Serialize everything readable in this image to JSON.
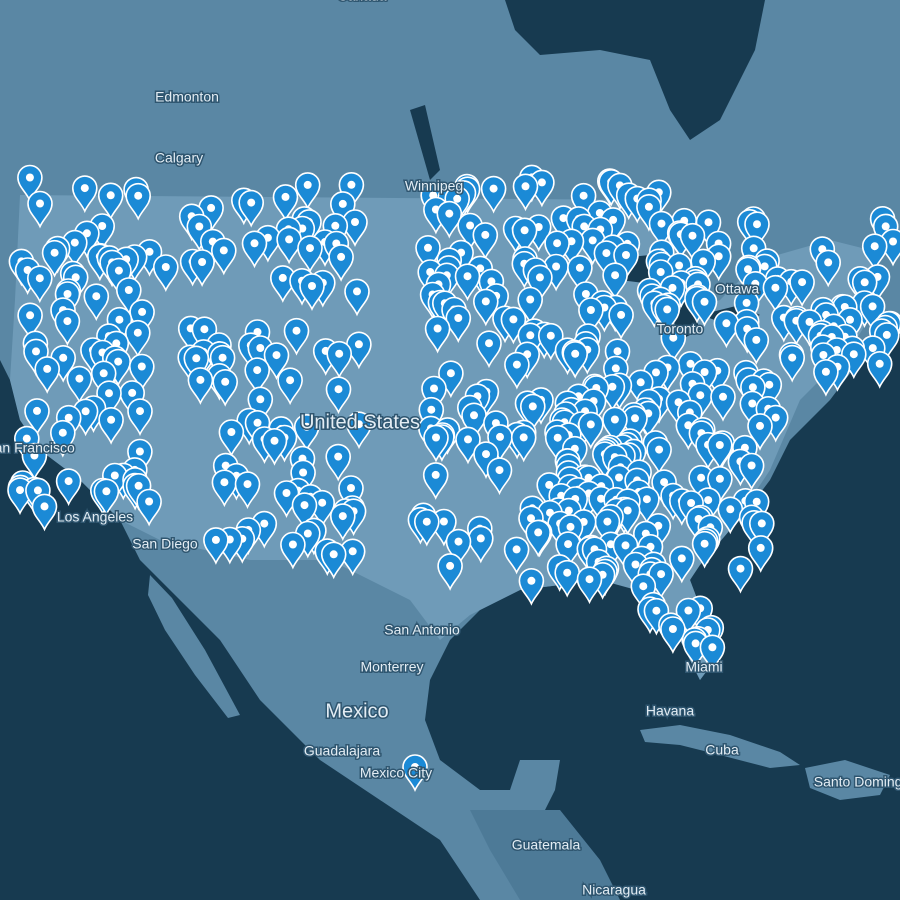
{
  "map": {
    "labels": [
      {
        "text": "Canada"
      },
      {
        "text": "Edmonton"
      },
      {
        "text": "Calgary"
      },
      {
        "text": "Winnipeg"
      },
      {
        "text": "Ottawa"
      },
      {
        "text": "Toronto"
      },
      {
        "text": "United States"
      },
      {
        "text": "San Francisco"
      },
      {
        "text": "Los Angeles"
      },
      {
        "text": "San Diego"
      },
      {
        "text": "San Antonio"
      },
      {
        "text": "Monterrey"
      },
      {
        "text": "Mexico"
      },
      {
        "text": "Guadalajara"
      },
      {
        "text": "Mexico City"
      },
      {
        "text": "Havana"
      },
      {
        "text": "Cuba"
      },
      {
        "text": "Santo Domingo"
      },
      {
        "text": "Guatemala"
      },
      {
        "text": "Nicaragua"
      },
      {
        "text": "Miami"
      }
    ]
  }
}
